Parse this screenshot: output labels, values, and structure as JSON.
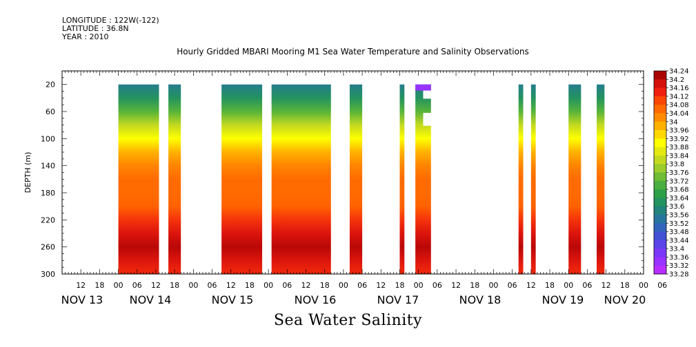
{
  "header": {
    "longitude": "LONGITUDE : 122W(-122)",
    "latitude": "LATITUDE : 36.8N",
    "year": "YEAR : 2010"
  },
  "footer": "Sea Water Salinity",
  "chart_data": {
    "type": "heatmap",
    "title": "Hourly Gridded MBARI Mooring M1 Sea Water Temperature and Salinity Observations",
    "xlabel": "",
    "ylabel": "DEPTH (m)",
    "y_reversed": true,
    "ylim": [
      300,
      0
    ],
    "y_ticks": [
      20,
      60,
      100,
      140,
      180,
      220,
      260,
      300
    ],
    "x_start_label": "NOV 13 06:00",
    "x_hours_range": [
      0,
      186
    ],
    "hour_tick_labels": [
      "12",
      "18",
      "00",
      "06",
      "12",
      "18",
      "00",
      "06",
      "12",
      "18",
      "00",
      "06",
      "12",
      "18",
      "00",
      "06",
      "12",
      "18",
      "00",
      "06",
      "12",
      "18",
      "00",
      "06",
      "12",
      "18",
      "00",
      "06",
      "12",
      "18",
      "00",
      "06"
    ],
    "day_labels": [
      "NOV 13",
      "NOV 14",
      "NOV 15",
      "NOV 16",
      "NOV 17",
      "NOV 18",
      "NOV 19",
      "NOV 20"
    ],
    "colorbar": {
      "labels": [
        "34.24",
        "34.2",
        "34.16",
        "34.12",
        "34.08",
        "34.04",
        "34",
        "33.96",
        "33.92",
        "33.88",
        "33.84",
        "33.8",
        "33.76",
        "33.72",
        "33.68",
        "33.64",
        "33.6",
        "33.56",
        "33.52",
        "33.48",
        "33.44",
        "33.4",
        "33.36",
        "33.32",
        "33.28"
      ],
      "min": 33.28,
      "max": 34.24
    },
    "profile_depths": [
      20,
      40,
      60,
      80,
      100,
      120,
      140,
      160,
      180,
      200,
      220,
      240,
      260,
      280,
      300
    ],
    "profile_salinity": [
      33.56,
      33.62,
      33.72,
      33.82,
      33.9,
      33.98,
      34.03,
      34.06,
      34.06,
      34.07,
      34.12,
      34.17,
      34.21,
      34.17,
      34.13
    ],
    "observation_segments": [
      {
        "start_hour": 18,
        "end_hour": 31,
        "top_depth": 20
      },
      {
        "start_hour": 34,
        "end_hour": 38,
        "top_depth": 20
      },
      {
        "start_hour": 51,
        "end_hour": 64,
        "top_depth": 20
      },
      {
        "start_hour": 67,
        "end_hour": 86,
        "top_depth": 20
      },
      {
        "start_hour": 92,
        "end_hour": 96,
        "top_depth": 20
      },
      {
        "start_hour": 108,
        "end_hour": 109.5,
        "top_depth": 20
      },
      {
        "start_hour": 113,
        "end_hour": 118,
        "top_depth": 20,
        "notes": "low salinity (~33.3) near top; gap 32-40 m and 60-80 m on right half"
      },
      {
        "start_hour": 146,
        "end_hour": 147.5,
        "top_depth": 20
      },
      {
        "start_hour": 150,
        "end_hour": 151.5,
        "top_depth": 20
      },
      {
        "start_hour": 162,
        "end_hour": 166,
        "top_depth": 20
      },
      {
        "start_hour": 171,
        "end_hour": 173.5,
        "top_depth": 20
      }
    ],
    "grid": false
  }
}
